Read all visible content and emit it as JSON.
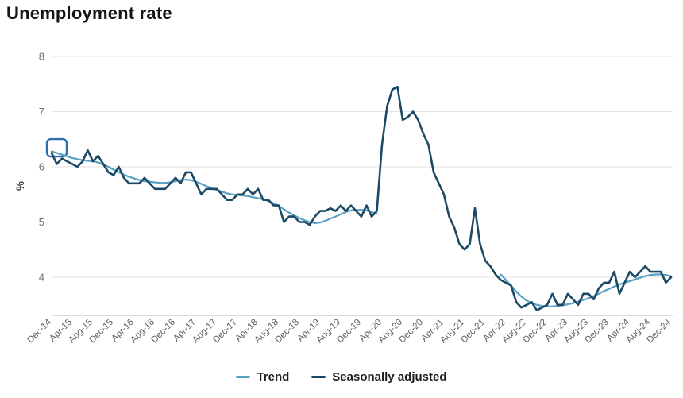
{
  "title": "Unemployment rate",
  "chart_data": {
    "type": "line",
    "title": "Unemployment rate",
    "xlabel": "",
    "ylabel": "%",
    "y_ticks": [
      4,
      5,
      6,
      7,
      8
    ],
    "ylim": [
      3.3,
      8
    ],
    "grid": "horizontal",
    "legend_position": "bottom-center",
    "x_start": "Dec-14",
    "x_end": "Dec-24",
    "x_tick_interval_months": 4,
    "x_tick_labels": [
      "Dec-14",
      "Apr-15",
      "Aug-15",
      "Dec-15",
      "Apr-16",
      "Aug-16",
      "Dec-16",
      "Apr-17",
      "Aug-17",
      "Dec-17",
      "Apr-18",
      "Aug-18",
      "Dec-18",
      "Apr-19",
      "Aug-19",
      "Dec-19",
      "Apr-20",
      "Aug-20",
      "Dec-20",
      "Apr-21",
      "Aug-21",
      "Dec-21",
      "Apr-22",
      "Aug-22",
      "Dec-22",
      "Apr-23",
      "Aug-23",
      "Dec-23",
      "Apr-24",
      "Aug-24",
      "Dec-24"
    ],
    "series": [
      {
        "name": "Trend",
        "color": "#57a0c4",
        "note": "series suspended between Apr-20 and Feb-22",
        "segments": [
          {
            "start_month_index": 0,
            "start_label": "Dec-14",
            "values": [
              6.28,
              6.25,
              6.22,
              6.19,
              6.16,
              6.14,
              6.12,
              6.11,
              6.1,
              6.08,
              6.04,
              6.0,
              5.95,
              5.9,
              5.86,
              5.82,
              5.79,
              5.76,
              5.74,
              5.73,
              5.72,
              5.71,
              5.71,
              5.72,
              5.74,
              5.76,
              5.77,
              5.76,
              5.73,
              5.69,
              5.65,
              5.61,
              5.58,
              5.55,
              5.52,
              5.5,
              5.49,
              5.48,
              5.47,
              5.45,
              5.43,
              5.41,
              5.38,
              5.34,
              5.29,
              5.23,
              5.17,
              5.12,
              5.07,
              5.03,
              5.0,
              4.98,
              4.99,
              5.02,
              5.06,
              5.1,
              5.14,
              5.18,
              5.21,
              5.22,
              5.22,
              5.21,
              5.18,
              5.15
            ]
          },
          {
            "start_month_index": 87,
            "start_label": "Mar-22",
            "values": [
              4.05,
              3.95,
              3.85,
              3.74,
              3.65,
              3.58,
              3.53,
              3.5,
              3.48,
              3.47,
              3.47,
              3.48,
              3.49,
              3.51,
              3.53,
              3.56,
              3.59,
              3.62,
              3.66,
              3.7,
              3.75,
              3.79,
              3.83,
              3.87,
              3.9,
              3.93,
              3.96,
              3.99,
              4.02,
              4.04,
              4.05,
              4.05,
              4.04,
              4.02
            ]
          }
        ]
      },
      {
        "name": "Seasonally adjusted",
        "color": "#1c4966",
        "start_month_index": 0,
        "values": [
          6.25,
          6.05,
          6.15,
          6.1,
          6.05,
          6.0,
          6.1,
          6.3,
          6.1,
          6.2,
          6.05,
          5.9,
          5.85,
          6.0,
          5.8,
          5.7,
          5.7,
          5.7,
          5.8,
          5.7,
          5.6,
          5.6,
          5.6,
          5.7,
          5.8,
          5.7,
          5.9,
          5.9,
          5.7,
          5.5,
          5.6,
          5.6,
          5.6,
          5.5,
          5.4,
          5.4,
          5.5,
          5.5,
          5.6,
          5.5,
          5.6,
          5.4,
          5.4,
          5.3,
          5.3,
          5.0,
          5.1,
          5.1,
          5.0,
          5.0,
          4.95,
          5.1,
          5.2,
          5.2,
          5.25,
          5.2,
          5.3,
          5.2,
          5.3,
          5.2,
          5.1,
          5.3,
          5.1,
          5.2,
          6.4,
          7.1,
          7.4,
          7.45,
          6.85,
          6.9,
          7.0,
          6.85,
          6.6,
          6.4,
          5.9,
          5.7,
          5.5,
          5.1,
          4.9,
          4.6,
          4.5,
          4.6,
          5.25,
          4.6,
          4.3,
          4.2,
          4.05,
          3.95,
          3.9,
          3.85,
          3.55,
          3.45,
          3.5,
          3.55,
          3.4,
          3.45,
          3.5,
          3.7,
          3.5,
          3.5,
          3.7,
          3.6,
          3.5,
          3.7,
          3.7,
          3.6,
          3.8,
          3.9,
          3.9,
          4.1,
          3.7,
          3.9,
          4.1,
          4.0,
          4.1,
          4.2,
          4.1,
          4.1,
          4.1,
          3.9,
          4.0
        ]
      }
    ],
    "highlight": {
      "series": "Seasonally adjusted",
      "month": "Dec-14",
      "value": 6.25,
      "shape": "rounded-rect-outline",
      "color": "#2e6fac"
    }
  },
  "style_colors": {
    "gridline": "#e3e3e3",
    "axis_line": "#c0ccd4",
    "y_tick_text": "#707070",
    "x_tick_text": "#5e5e5e",
    "ylabel_text": "#3d3d3d"
  }
}
